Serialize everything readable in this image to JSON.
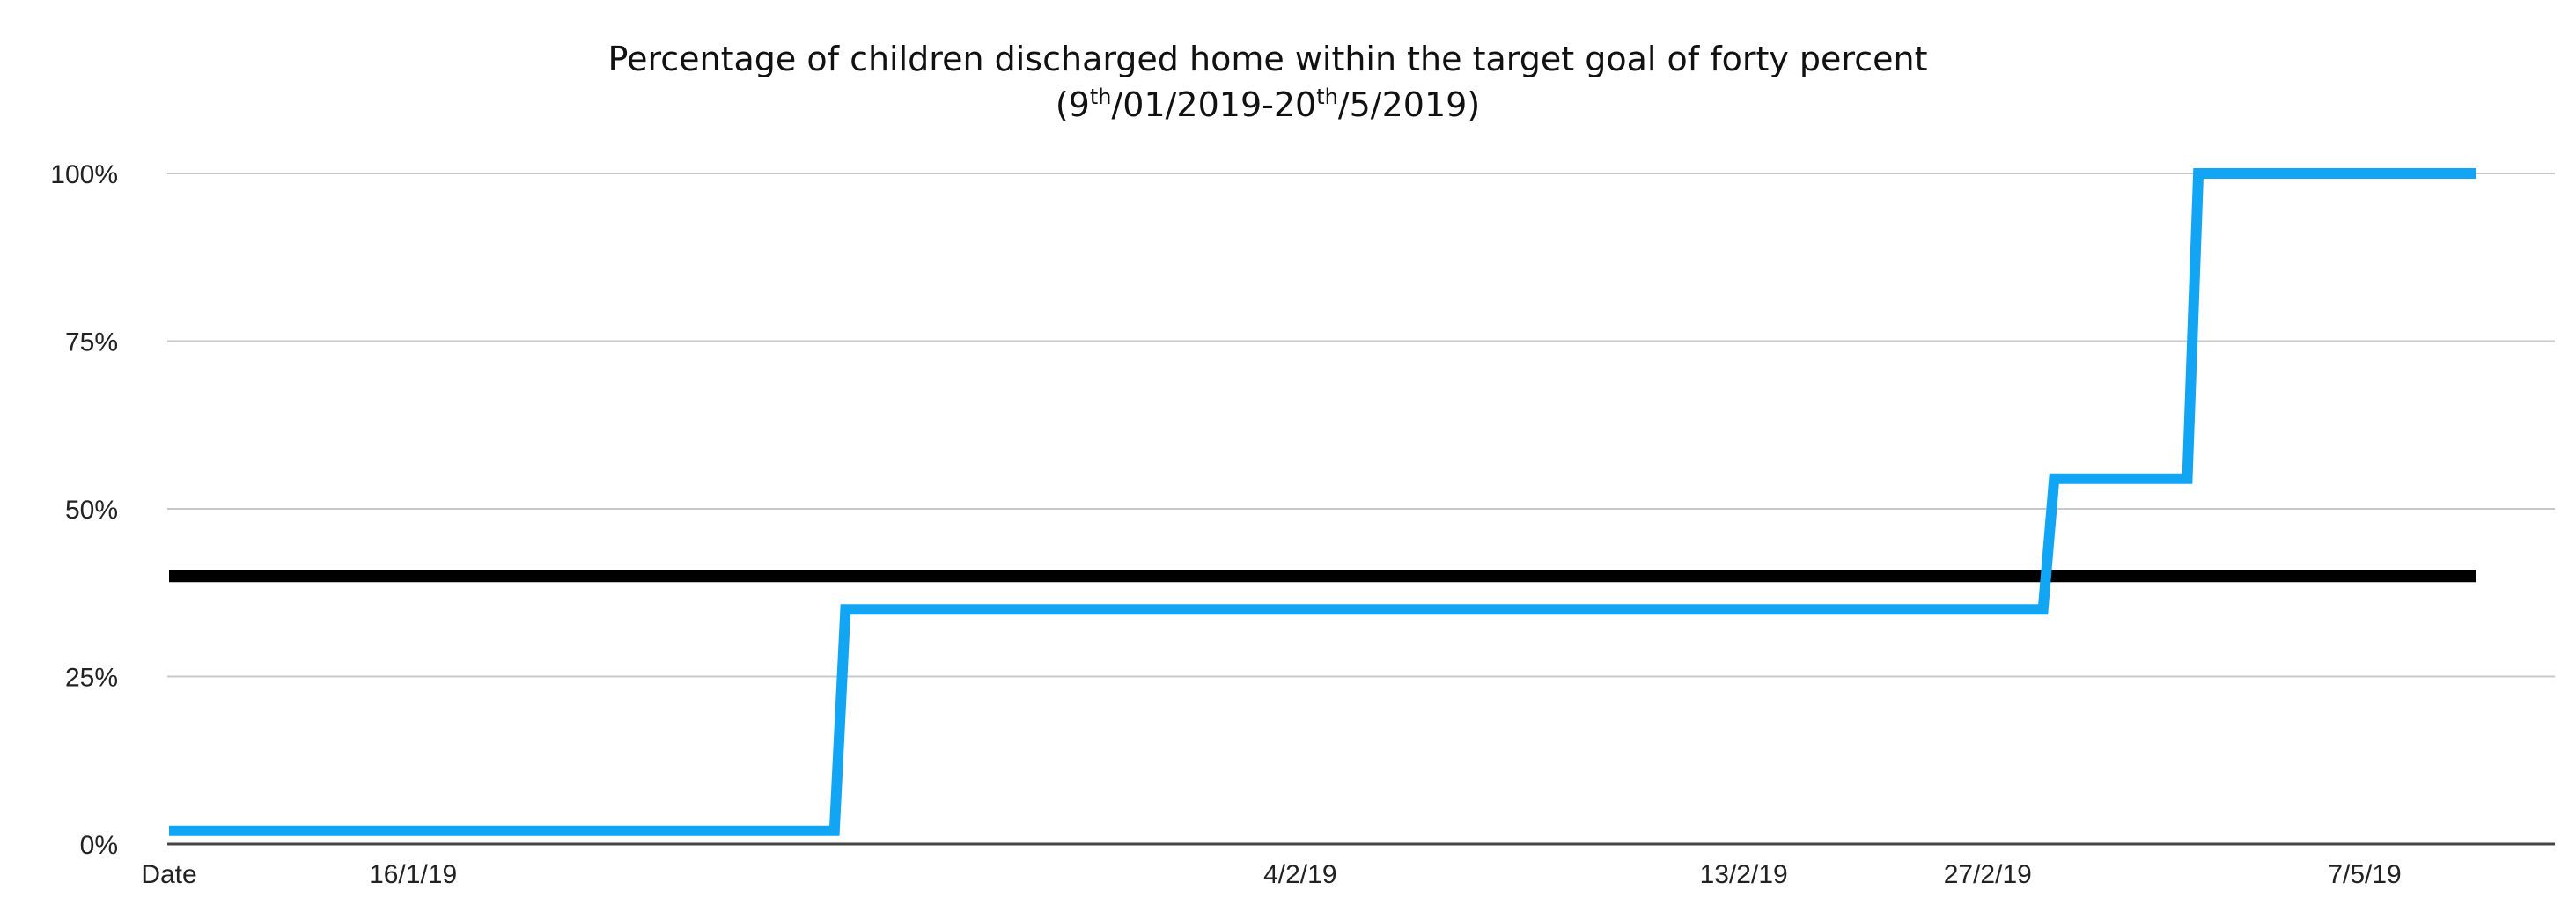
{
  "chart_data": {
    "type": "line",
    "title": "Percentage of children discharged home within the target goal of forty percent",
    "subtitle_parts": [
      "(9",
      "th",
      "/01/2019-20",
      "th",
      "/5/2019)"
    ],
    "xlabel": "",
    "ylabel": "",
    "ylim": [
      0,
      100
    ],
    "y_ticks": [
      "0%",
      "25%",
      "50%",
      "75%",
      "100%"
    ],
    "y_tick_values": [
      0,
      25,
      50,
      75,
      100
    ],
    "grid": "horizontal",
    "x_tick_labels": [
      {
        "label": "Date",
        "position": 0
      },
      {
        "label": "16/1/19",
        "position": 1.1
      },
      {
        "label": "4/2/19",
        "position": 5.1
      },
      {
        "label": "13/2/19",
        "position": 7.1
      },
      {
        "label": "27/2/19",
        "position": 8.2
      },
      {
        "label": "7/5/19",
        "position": 9.9
      }
    ],
    "x_range": [
      0,
      10.5
    ],
    "series": [
      {
        "color": "#12a5f4",
        "step": true,
        "points": [
          {
            "x": 0,
            "y": 2
          },
          {
            "x": 3.0,
            "y": 2
          },
          {
            "x": 3.05,
            "y": 35
          },
          {
            "x": 8.45,
            "y": 35
          },
          {
            "x": 8.5,
            "y": 54.5
          },
          {
            "x": 9.1,
            "y": 54.5
          },
          {
            "x": 9.15,
            "y": 100
          },
          {
            "x": 10.4,
            "y": 100
          }
        ]
      },
      {
        "color": "#000000",
        "points": [
          {
            "x": 0,
            "y": 40
          },
          {
            "x": 10.4,
            "y": 40
          }
        ]
      }
    ]
  }
}
